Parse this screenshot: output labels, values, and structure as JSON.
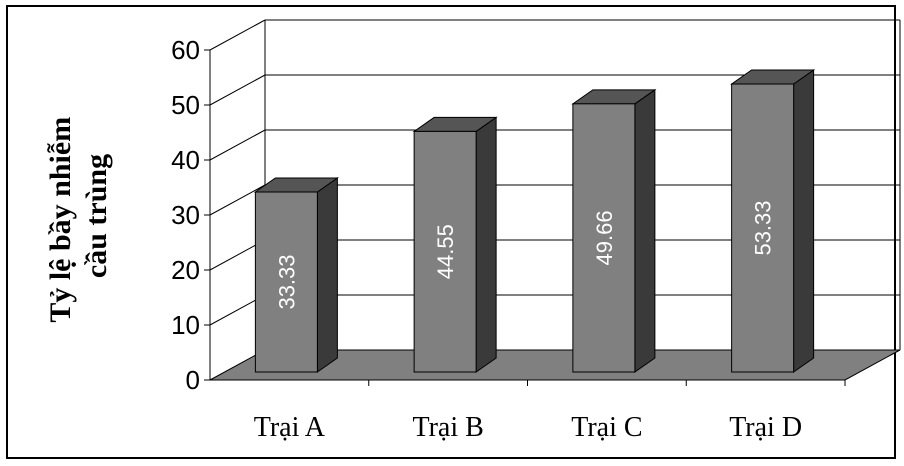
{
  "chart_data": {
    "type": "bar",
    "style": "3d-column",
    "categories": [
      "Trại A",
      "Trại B",
      "Trại C",
      "Trại D"
    ],
    "values": [
      33.33,
      44.55,
      49.66,
      53.33
    ],
    "data_labels": [
      "33.33",
      "44.55",
      "49.66",
      "53.33"
    ],
    "title": "",
    "xlabel": "",
    "ylabel_lines": [
      "Tỷ lệ bầy nhiễm",
      "cầu trùng"
    ],
    "ylim": [
      0,
      60
    ],
    "yticks": [
      "0",
      "10",
      "20",
      "30",
      "40",
      "50",
      "60"
    ],
    "grid": true,
    "legend": false,
    "colors": {
      "bar_front": "#808080",
      "bar_top": "#555555",
      "bar_side": "#3a3a3a",
      "floor": "#808080",
      "grid": "#000000"
    }
  }
}
